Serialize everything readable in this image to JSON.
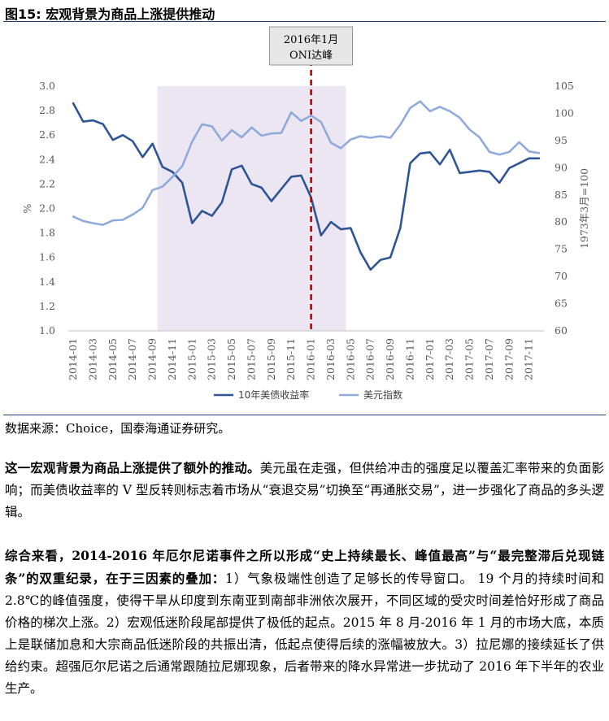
{
  "figure": {
    "label": "图15:",
    "title": "宏观背景为商品上涨提供推动",
    "source": "数据来源：Choice，国泰海通证券研究。"
  },
  "chart_data": {
    "type": "line",
    "x": [
      "2014-01",
      "2014-02",
      "2014-03",
      "2014-04",
      "2014-05",
      "2014-06",
      "2014-07",
      "2014-08",
      "2014-09",
      "2014-10",
      "2014-11",
      "2014-12",
      "2015-01",
      "2015-02",
      "2015-03",
      "2015-04",
      "2015-05",
      "2015-06",
      "2015-07",
      "2015-08",
      "2015-09",
      "2015-10",
      "2015-11",
      "2015-12",
      "2016-01",
      "2016-02",
      "2016-03",
      "2016-04",
      "2016-05",
      "2016-06",
      "2016-07",
      "2016-08",
      "2016-09",
      "2016-10",
      "2016-11",
      "2016-12",
      "2017-01",
      "2017-02",
      "2017-03",
      "2017-04",
      "2017-05",
      "2017-06",
      "2017-07",
      "2017-08",
      "2017-09",
      "2017-10",
      "2017-11",
      "2017-12"
    ],
    "xtick_labels": [
      "2014-01",
      "2014-03",
      "2014-05",
      "2014-07",
      "2014-09",
      "2014-11",
      "2015-01",
      "2015-03",
      "2015-05",
      "2015-07",
      "2015-09",
      "2015-11",
      "2016-01",
      "2016-03",
      "2016-05",
      "2016-07",
      "2016-09",
      "2016-11",
      "2017-01",
      "2017-03",
      "2017-05",
      "2017-07",
      "2017-09",
      "2017-11"
    ],
    "ylabel": "%",
    "y2label": "1973年3月=100",
    "ylim": [
      1.0,
      3.0
    ],
    "yticks": [
      "1.0",
      "1.2",
      "1.4",
      "1.6",
      "1.8",
      "2.0",
      "2.2",
      "2.4",
      "2.6",
      "2.8",
      "3.0"
    ],
    "y2lim": [
      60,
      105
    ],
    "y2ticks": [
      "60",
      "65",
      "70",
      "75",
      "80",
      "85",
      "90",
      "95",
      "100",
      "105"
    ],
    "shaded_region": [
      "2014-10",
      "2016-04"
    ],
    "annotation": {
      "text_line1": "2016年1月",
      "text_line2": "ONI达峰",
      "x": "2016-01"
    },
    "legend_position": "bottom",
    "series": [
      {
        "name": "10年美债收益率",
        "axis": "left",
        "color": "#2f5597",
        "values": [
          2.86,
          2.71,
          2.72,
          2.69,
          2.56,
          2.6,
          2.55,
          2.42,
          2.53,
          2.34,
          2.3,
          2.21,
          1.88,
          1.98,
          1.94,
          2.05,
          2.32,
          2.35,
          2.2,
          2.17,
          2.06,
          2.16,
          2.26,
          2.27,
          2.09,
          1.78,
          1.89,
          1.83,
          1.84,
          1.64,
          1.5,
          1.58,
          1.6,
          1.84,
          2.37,
          2.45,
          2.46,
          2.36,
          2.48,
          2.29,
          2.3,
          2.31,
          2.3,
          2.21,
          2.33,
          2.37,
          2.41,
          2.41
        ]
      },
      {
        "name": "美元指数",
        "axis": "right",
        "color": "#8faadc",
        "values": [
          81.0,
          80.2,
          79.8,
          79.5,
          80.3,
          80.4,
          81.4,
          82.6,
          85.9,
          86.5,
          88.3,
          90.3,
          94.8,
          98.0,
          97.6,
          95.0,
          96.9,
          95.6,
          97.4,
          95.9,
          96.3,
          96.4,
          100.2,
          98.6,
          99.6,
          98.4,
          94.6,
          93.6,
          95.2,
          95.8,
          95.5,
          95.8,
          95.5,
          97.9,
          101.0,
          102.2,
          100.4,
          101.2,
          100.4,
          99.2,
          97.0,
          95.6,
          92.9,
          92.4,
          92.9,
          94.7,
          93.0,
          92.7
        ]
      }
    ]
  },
  "paragraphs": {
    "p1_bold": "这一宏观背景为商品上涨提供了额外的推动。",
    "p1_text": "美元虽在走强，但供给冲击的强度足以覆盖汇率带来的负面影响；而美债收益率的 V 型反转则标志着市场从“衰退交易”切换至“再通胀交易”，进一步强化了商品的多头逻辑。",
    "p2_bold": "综合来看，2014-2016 年厄尔尼诺事件之所以形成“史上持续最长、峰值最高”与“最完整滞后兑现链条”的双重纪录，在于三因素的叠加：",
    "p2_text": "1）气象极端性创造了足够长的传导窗口。 19 个月的持续时间和 2.8℃的峰值强度，使得干旱从印度到东南亚到南部非洲依次展开，不同区域的受灾时间差恰好形成了商品价格的梯次上涨。2）宏观低迷阶段尾部提供了极低的起点。2015 年 8 月-2016 年 1 月的市场大底，本质上是联储加息和大宗商品低迷阶段的共振出清，低起点使得后续的涨幅被放大。3）拉尼娜的接续延长了供给约束。超强厄尔尼诺之后通常跟随拉尼娜现象，后者带来的降水异常进一步扰动了 2016 年下半年的农业生产。"
  }
}
